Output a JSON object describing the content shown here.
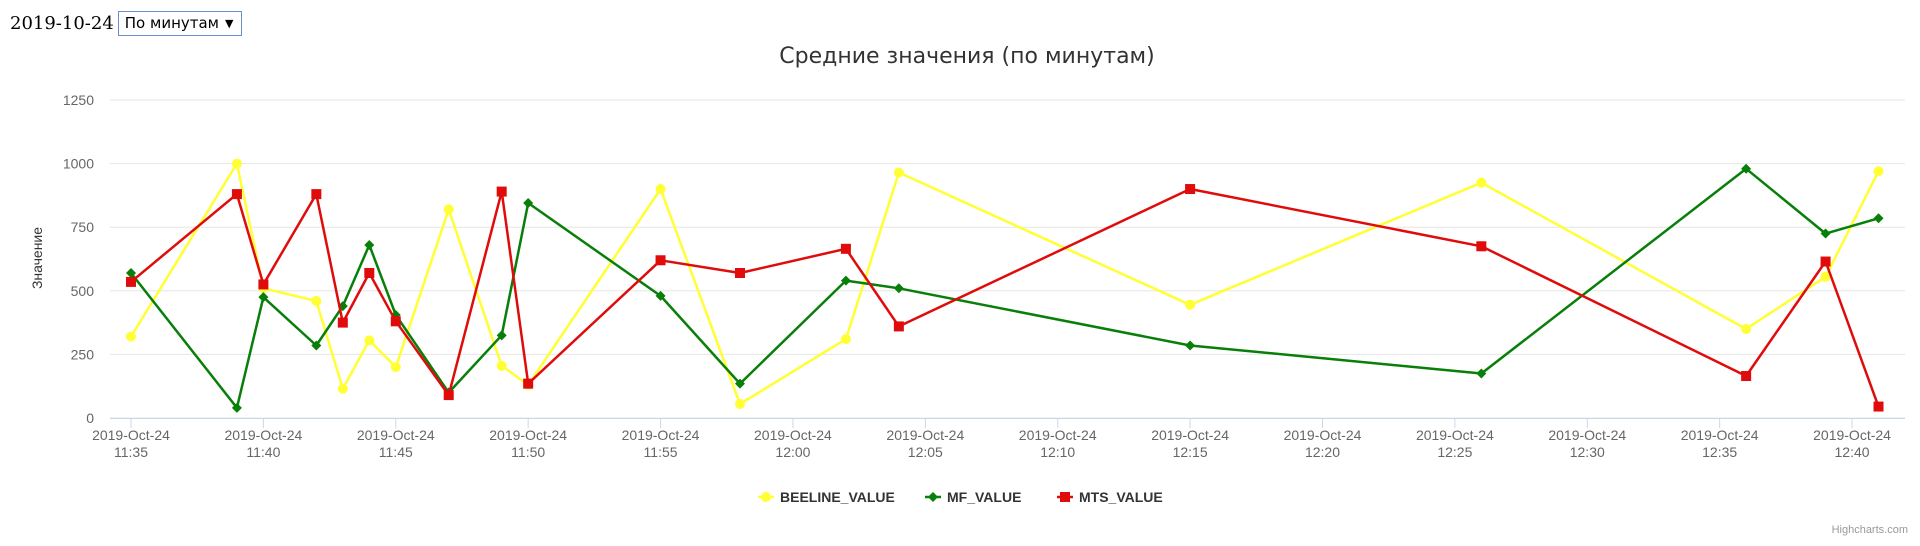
{
  "controls": {
    "date": "2019-10-24",
    "period_selected": "По минутам"
  },
  "icons": {
    "select_arrow": "▼"
  },
  "credits": "Highcharts.com",
  "chart_data": {
    "type": "line",
    "title": "Средние значения (по минутам)",
    "ylabel": "Значение",
    "xlabel": "",
    "ylim": [
      0,
      1250
    ],
    "yticks": [
      0,
      250,
      500,
      750,
      1000,
      1250
    ],
    "xlim": [
      "11:35",
      "12:42"
    ],
    "xticks": [
      "11:35",
      "11:40",
      "11:45",
      "11:50",
      "11:55",
      "12:00",
      "12:05",
      "12:10",
      "12:15",
      "12:20",
      "12:25",
      "12:30",
      "12:35",
      "12:40"
    ],
    "xtick_date": "2019-Oct-24",
    "grid": true,
    "legend": "bottom-center",
    "series": [
      {
        "name": "BEELINE_VALUE",
        "color": "#ffff33",
        "marker": "circle",
        "x": [
          "11:35",
          "11:39",
          "11:40",
          "11:42",
          "11:43",
          "11:44",
          "11:45",
          "11:47",
          "11:49",
          "11:50",
          "11:55",
          "11:58",
          "12:02",
          "12:04",
          "12:15",
          "12:26",
          "12:36",
          "12:39",
          "12:41"
        ],
        "y": [
          320,
          1000,
          510,
          460,
          115,
          305,
          200,
          820,
          205,
          130,
          900,
          55,
          310,
          965,
          445,
          925,
          350,
          555,
          970
        ]
      },
      {
        "name": "MF_VALUE",
        "color": "#087f08",
        "marker": "diamond",
        "x": [
          "11:35",
          "11:39",
          "11:40",
          "11:42",
          "11:43",
          "11:44",
          "11:45",
          "11:47",
          "11:49",
          "11:50",
          "11:55",
          "11:58",
          "12:02",
          "12:04",
          "12:15",
          "12:26",
          "12:36",
          "12:39",
          "12:41"
        ],
        "y": [
          570,
          40,
          475,
          285,
          440,
          680,
          405,
          100,
          325,
          845,
          480,
          135,
          540,
          510,
          285,
          175,
          980,
          725,
          785
        ]
      },
      {
        "name": "MTS_VALUE",
        "color": "#e00b0b",
        "marker": "square",
        "x": [
          "11:35",
          "11:39",
          "11:40",
          "11:42",
          "11:43",
          "11:44",
          "11:45",
          "11:47",
          "11:49",
          "11:50",
          "11:55",
          "11:58",
          "12:02",
          "12:04",
          "12:15",
          "12:26",
          "12:36",
          "12:39",
          "12:41"
        ],
        "y": [
          535,
          880,
          525,
          880,
          375,
          570,
          380,
          90,
          890,
          135,
          620,
          570,
          665,
          360,
          900,
          675,
          165,
          615,
          45
        ]
      }
    ]
  }
}
